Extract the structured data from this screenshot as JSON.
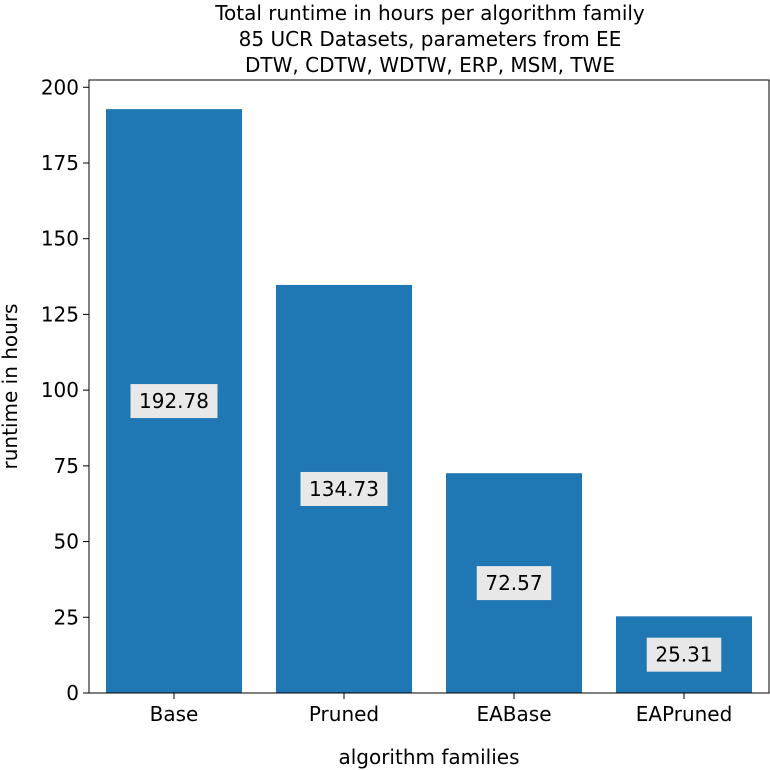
{
  "chart_data": {
    "type": "bar",
    "title_lines": [
      "Total runtime in hours per algorithm family",
      "85 UCR Datasets, parameters from EE",
      "DTW, CDTW, WDTW, ERP, MSM, TWE"
    ],
    "xlabel": "algorithm families",
    "ylabel": "runtime in hours",
    "categories": [
      "Base",
      "Pruned",
      "EABase",
      "EAPruned"
    ],
    "values": [
      192.78,
      134.73,
      72.57,
      25.31
    ],
    "value_labels": [
      "192.78",
      "134.73",
      "72.57",
      "25.31"
    ],
    "yticks": [
      0,
      25,
      50,
      75,
      100,
      125,
      150,
      175,
      200
    ],
    "ylim": [
      0,
      202.4
    ],
    "grid": false,
    "legend": "none",
    "colors": {
      "bar": "#1f77b4",
      "label_box": "#e8e8e8"
    }
  }
}
